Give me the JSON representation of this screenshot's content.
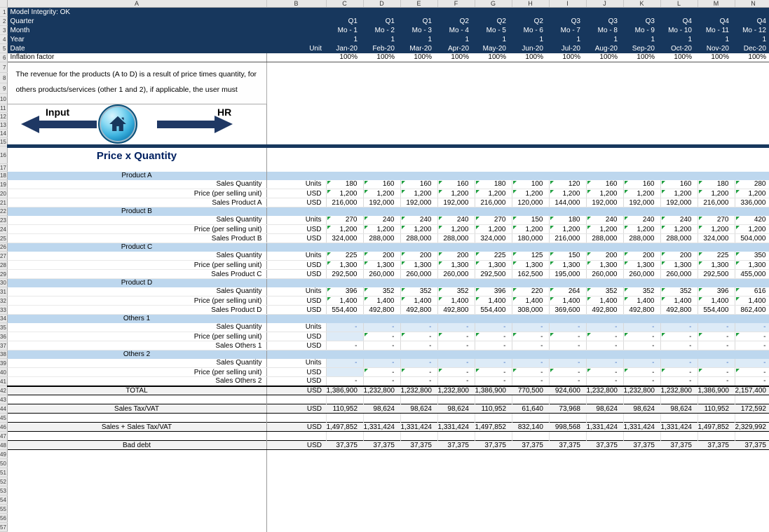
{
  "grid": {
    "column_letters": [
      "A",
      "B",
      "C",
      "D",
      "E",
      "F",
      "G",
      "H",
      "I",
      "J",
      "K",
      "L",
      "M",
      "N"
    ],
    "gutter": {
      "first_row": 1,
      "last_row": 57
    },
    "top": {
      "model_integrity": "Model Integrity: OK",
      "rows": [
        {
          "label": "Quarter",
          "values": [
            "Q1",
            "Q1",
            "Q1",
            "Q2",
            "Q2",
            "Q2",
            "Q3",
            "Q3",
            "Q3",
            "Q4",
            "Q4",
            "Q4"
          ]
        },
        {
          "label": "Month",
          "values": [
            "Mo - 1",
            "Mo - 2",
            "Mo - 3",
            "Mo - 4",
            "Mo - 5",
            "Mo - 6",
            "Mo - 7",
            "Mo - 8",
            "Mo - 9",
            "Mo - 10",
            "Mo - 11",
            "Mo - 12"
          ]
        },
        {
          "label": "Year",
          "values": [
            "1",
            "1",
            "1",
            "1",
            "1",
            "1",
            "1",
            "1",
            "1",
            "1",
            "1",
            "1"
          ]
        },
        {
          "label": "Date",
          "unit": "Unit",
          "values": [
            "Jan-20",
            "Feb-20",
            "Mar-20",
            "Apr-20",
            "May-20",
            "Jun-20",
            "Jul-20",
            "Aug-20",
            "Sep-20",
            "Oct-20",
            "Nov-20",
            "Dec-20"
          ]
        }
      ],
      "inflation": {
        "label": "Inflation factor",
        "values": [
          "100%",
          "100%",
          "100%",
          "100%",
          "100%",
          "100%",
          "100%",
          "100%",
          "100%",
          "100%",
          "100%",
          "100%"
        ]
      }
    },
    "note": {
      "lines": [
        "The revenue for the products (A to D) is a result of price times quantity, for",
        "others  products/services (other 1 and 2), if applicable, the user must"
      ]
    },
    "nav": {
      "left_label": "Input",
      "right_label": "HR",
      "home_icon": "home-icon"
    },
    "title": "Price x Quantity",
    "sections": [
      {
        "header": "Product A",
        "rows": [
          {
            "label": "Sales Quantity",
            "unit": "Units",
            "type": "qty",
            "values": [
              "180",
              "160",
              "160",
              "160",
              "180",
              "100",
              "120",
              "160",
              "160",
              "160",
              "180",
              "280"
            ]
          },
          {
            "label": "Price (per selling unit)",
            "unit": "USD",
            "type": "price",
            "values": [
              "1,200",
              "1,200",
              "1,200",
              "1,200",
              "1,200",
              "1,200",
              "1,200",
              "1,200",
              "1,200",
              "1,200",
              "1,200",
              "1,200"
            ]
          },
          {
            "label": "Sales Product A",
            "unit": "USD",
            "type": "calc",
            "values": [
              "216,000",
              "192,000",
              "192,000",
              "192,000",
              "216,000",
              "120,000",
              "144,000",
              "192,000",
              "192,000",
              "192,000",
              "216,000",
              "336,000"
            ]
          }
        ]
      },
      {
        "header": "Product B",
        "rows": [
          {
            "label": "Sales Quantity",
            "unit": "Units",
            "type": "qty",
            "values": [
              "270",
              "240",
              "240",
              "240",
              "270",
              "150",
              "180",
              "240",
              "240",
              "240",
              "270",
              "420"
            ]
          },
          {
            "label": "Price (per selling unit)",
            "unit": "USD",
            "type": "price",
            "values": [
              "1,200",
              "1,200",
              "1,200",
              "1,200",
              "1,200",
              "1,200",
              "1,200",
              "1,200",
              "1,200",
              "1,200",
              "1,200",
              "1,200"
            ]
          },
          {
            "label": "Sales Product B",
            "unit": "USD",
            "type": "calc",
            "values": [
              "324,000",
              "288,000",
              "288,000",
              "288,000",
              "324,000",
              "180,000",
              "216,000",
              "288,000",
              "288,000",
              "288,000",
              "324,000",
              "504,000"
            ]
          }
        ]
      },
      {
        "header": "Product C",
        "rows": [
          {
            "label": "Sales Quantity",
            "unit": "Units",
            "type": "qty",
            "values": [
              "225",
              "200",
              "200",
              "200",
              "225",
              "125",
              "150",
              "200",
              "200",
              "200",
              "225",
              "350"
            ]
          },
          {
            "label": "Price (per selling unit)",
            "unit": "USD",
            "type": "price",
            "values": [
              "1,300",
              "1,300",
              "1,300",
              "1,300",
              "1,300",
              "1,300",
              "1,300",
              "1,300",
              "1,300",
              "1,300",
              "1,300",
              "1,300"
            ]
          },
          {
            "label": "Sales Product C",
            "unit": "USD",
            "type": "calc",
            "values": [
              "292,500",
              "260,000",
              "260,000",
              "260,000",
              "292,500",
              "162,500",
              "195,000",
              "260,000",
              "260,000",
              "260,000",
              "292,500",
              "455,000"
            ]
          }
        ]
      },
      {
        "header": "Product D",
        "rows": [
          {
            "label": "Sales Quantity",
            "unit": "Units",
            "type": "qty",
            "values": [
              "396",
              "352",
              "352",
              "352",
              "396",
              "220",
              "264",
              "352",
              "352",
              "352",
              "396",
              "616"
            ]
          },
          {
            "label": "Price (per selling unit)",
            "unit": "USD",
            "type": "price",
            "values": [
              "1,400",
              "1,400",
              "1,400",
              "1,400",
              "1,400",
              "1,400",
              "1,400",
              "1,400",
              "1,400",
              "1,400",
              "1,400",
              "1,400"
            ]
          },
          {
            "label": "Sales Product D",
            "unit": "USD",
            "type": "calc",
            "values": [
              "554,400",
              "492,800",
              "492,800",
              "492,800",
              "554,400",
              "308,000",
              "369,600",
              "492,800",
              "492,800",
              "492,800",
              "554,400",
              "862,400"
            ]
          }
        ]
      },
      {
        "header": "Others 1",
        "rows": [
          {
            "label": "Sales Quantity",
            "unit": "Units",
            "type": "qty-input",
            "values": [
              "-",
              "-",
              "-",
              "-",
              "-",
              "-",
              "-",
              "-",
              "-",
              "-",
              "-",
              "-"
            ]
          },
          {
            "label": "Price (per selling unit)",
            "unit": "USD",
            "type": "price-input",
            "values": [
              "",
              "-",
              "-",
              "-",
              "-",
              "-",
              "-",
              "-",
              "-",
              "-",
              "-",
              "-"
            ]
          },
          {
            "label": "Sales Others 1",
            "unit": "USD",
            "type": "calc-dash",
            "values": [
              "-",
              "-",
              "-",
              "-",
              "-",
              "-",
              "-",
              "-",
              "-",
              "-",
              "-",
              "-"
            ]
          }
        ]
      },
      {
        "header": "Others 2",
        "rows": [
          {
            "label": "Sales Quantity",
            "unit": "Units",
            "type": "qty-input",
            "values": [
              "-",
              "-",
              "-",
              "-",
              "-",
              "-",
              "-",
              "-",
              "-",
              "-",
              "-",
              "-"
            ]
          },
          {
            "label": "Price (per selling unit)",
            "unit": "USD",
            "type": "price-input",
            "values": [
              "",
              "-",
              "-",
              "-",
              "-",
              "-",
              "-",
              "-",
              "-",
              "-",
              "-",
              "-"
            ]
          },
          {
            "label": "Sales Others 2",
            "unit": "USD",
            "type": "calc-dash",
            "values": [
              "-",
              "-",
              "-",
              "-",
              "-",
              "-",
              "-",
              "-",
              "-",
              "-",
              "-",
              "-"
            ]
          }
        ]
      }
    ],
    "summary": [
      {
        "label": "TOTAL",
        "unit": "USD",
        "first": true,
        "values": [
          "1,386,900",
          "1,232,800",
          "1,232,800",
          "1,232,800",
          "1,386,900",
          "770,500",
          "924,600",
          "1,232,800",
          "1,232,800",
          "1,232,800",
          "1,386,900",
          "2,157,400"
        ]
      },
      {
        "label": "Sales Tax/VAT",
        "unit": "USD",
        "values": [
          "110,952",
          "98,624",
          "98,624",
          "98,624",
          "110,952",
          "61,640",
          "73,968",
          "98,624",
          "98,624",
          "98,624",
          "110,952",
          "172,592"
        ]
      },
      {
        "label": "Sales + Sales Tax/VAT",
        "unit": "USD",
        "values": [
          "1,497,852",
          "1,331,424",
          "1,331,424",
          "1,331,424",
          "1,497,852",
          "832,140",
          "998,568",
          "1,331,424",
          "1,331,424",
          "1,331,424",
          "1,497,852",
          "2,329,992"
        ]
      },
      {
        "label": "Bad debt",
        "unit": "USD",
        "values": [
          "37,375",
          "37,375",
          "37,375",
          "37,375",
          "37,375",
          "37,375",
          "37,375",
          "37,375",
          "37,375",
          "37,375",
          "37,375",
          "37,375"
        ]
      }
    ],
    "colors": {
      "header_navy": "#17375D",
      "section_band": "#BDD7EE",
      "input_bg": "#DDEBF7",
      "input_text": "#4472C4",
      "summary_bg": "#F2F2F2",
      "flag_green": "#1E9E3E",
      "title_blue": "#002060",
      "arrow_navy": "#1F3864"
    }
  }
}
